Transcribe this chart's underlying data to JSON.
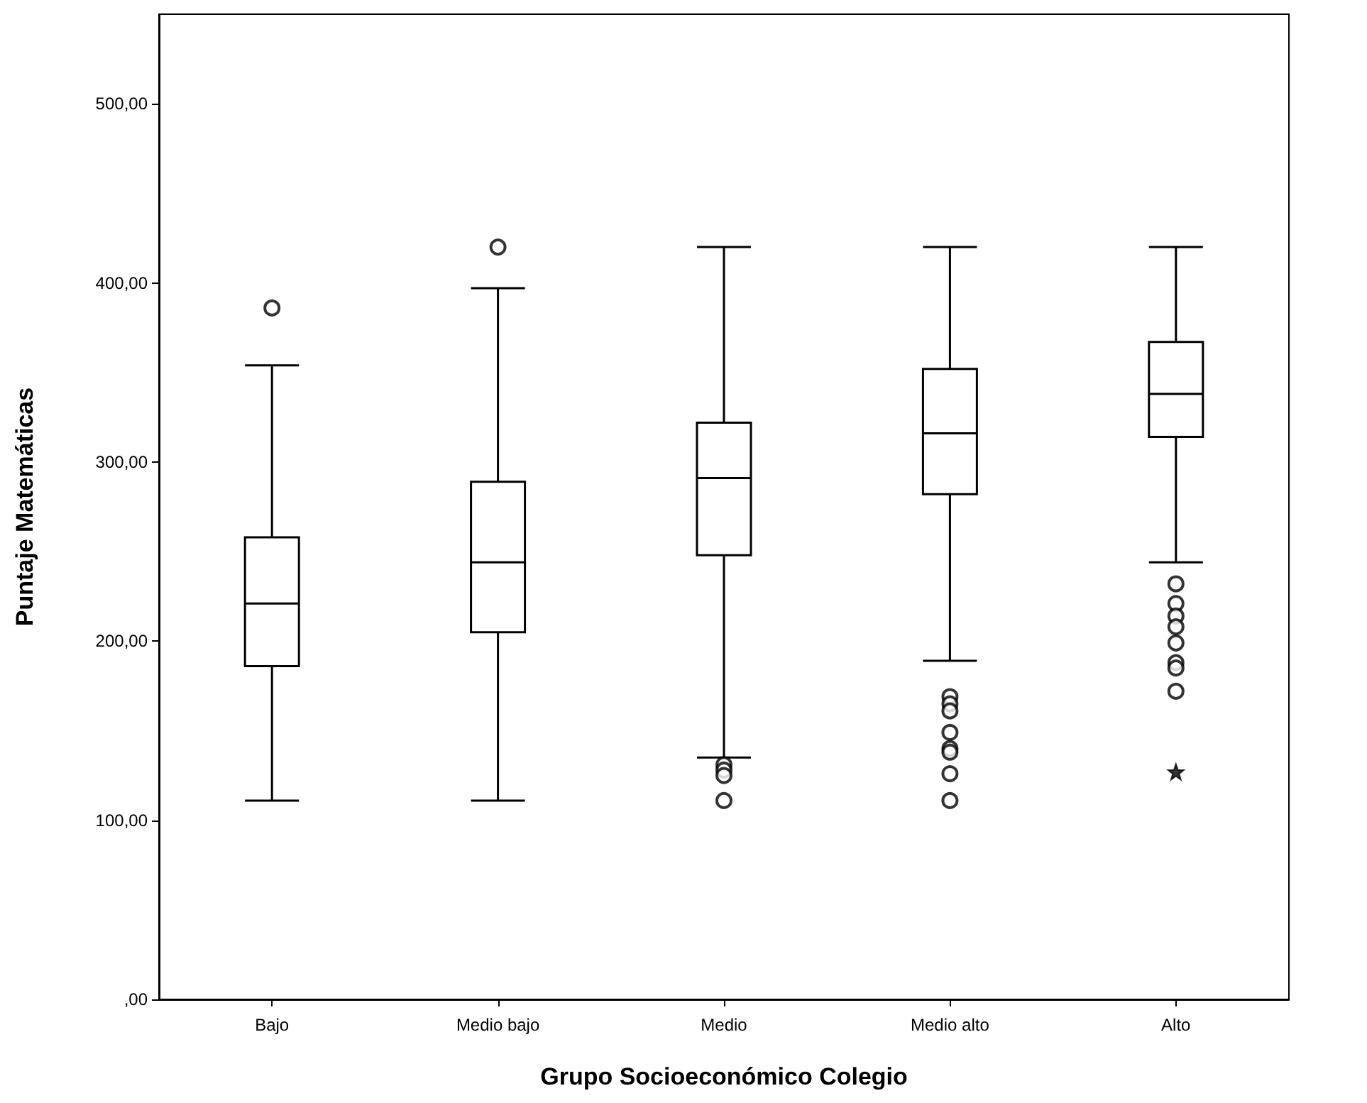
{
  "chart_data": {
    "type": "box",
    "xlabel": "Grupo Socioeconómico Colegio",
    "ylabel": "Puntaje Matemáticas",
    "categories": [
      "Bajo",
      "Medio bajo",
      "Medio",
      "Medio alto",
      "Alto"
    ],
    "series": [
      {
        "color": "#000000",
        "boxes": [
          {
            "low": 111,
            "q1": 186,
            "median": 221,
            "q3": 258,
            "high": 354,
            "outliers": [
              386
            ]
          },
          {
            "low": 111,
            "q1": 205,
            "median": 244,
            "q3": 289,
            "high": 397,
            "outliers": [
              420
            ]
          },
          {
            "low": 135,
            "q1": 248,
            "median": 291,
            "q3": 322,
            "high": 420,
            "outliers": [
              131,
              128,
              125,
              111
            ]
          },
          {
            "low": 189,
            "q1": 282,
            "median": 316,
            "q3": 352,
            "high": 420,
            "outliers": [
              169,
              165,
              161,
              149,
              140,
              138,
              126,
              111
            ]
          },
          {
            "low": 244,
            "q1": 314,
            "median": 338,
            "q3": 367,
            "high": 420,
            "outliers": [
              232,
              221,
              214,
              208,
              199,
              188,
              185,
              172
            ]
          }
        ]
      },
      {
        "type": "scatter",
        "color": "#000000",
        "marker": "star",
        "x": [
          "Alto"
        ],
        "values": [
          127
        ]
      }
    ],
    "ylim": [
      0,
      550
    ],
    "yticks": [
      {
        "value": 0,
        "label": ",00"
      },
      {
        "value": 100,
        "label": "100,00"
      },
      {
        "value": 200,
        "label": "200,00"
      },
      {
        "value": 300,
        "label": "300,00"
      },
      {
        "value": 400,
        "label": "400,00"
      },
      {
        "value": 500,
        "label": "500,00"
      }
    ],
    "grid": false
  }
}
